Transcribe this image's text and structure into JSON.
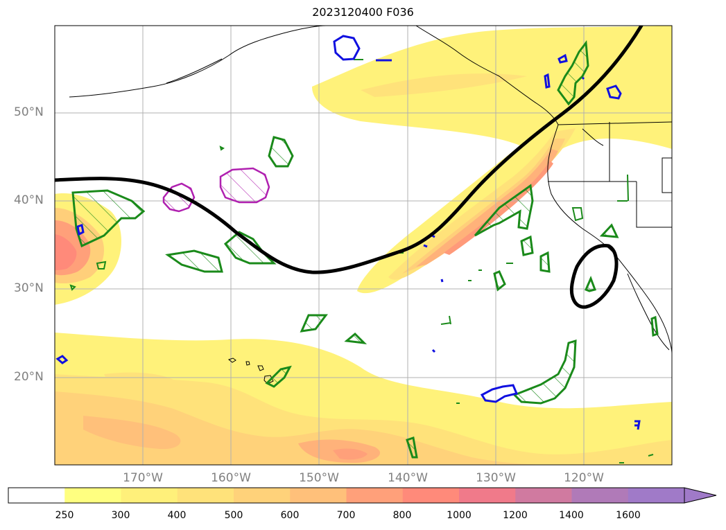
{
  "title": "2023120400 F036",
  "map": {
    "region": "North Pacific",
    "lat_labels": [
      "50°N",
      "40°N",
      "30°N",
      "20°N"
    ],
    "lon_labels": [
      "170°W",
      "160°W",
      "150°W",
      "140°W",
      "130°W",
      "120°W"
    ],
    "fill_colors": [
      "#ffffff",
      "#ffff80",
      "#fff07a",
      "#ffe27a",
      "#ffd27a",
      "#ffc07a",
      "#ffa07a",
      "#ff8a7a",
      "#f07a8a",
      "#d07aa0",
      "#b07ab8",
      "#a07ac8"
    ]
  },
  "colorbar": {
    "ticks": [
      "250",
      "300",
      "400",
      "500",
      "600",
      "700",
      "800",
      "1000",
      "1200",
      "1400",
      "1600"
    ],
    "extend": "max"
  }
}
